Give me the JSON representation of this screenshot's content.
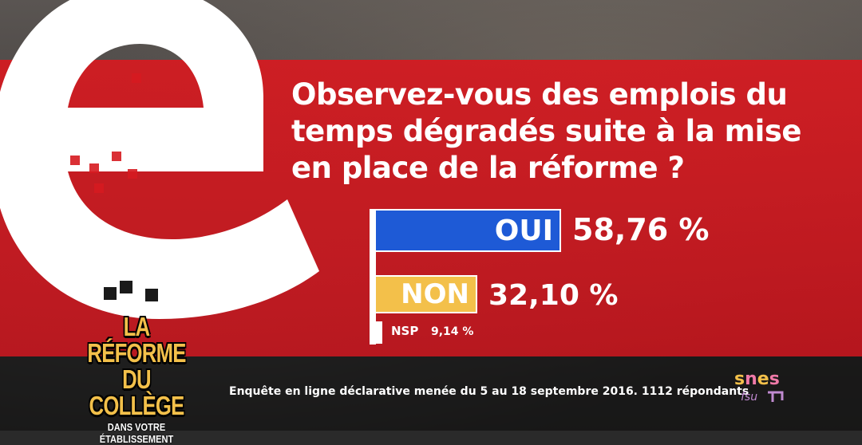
{
  "question": "Observez-vous des emplois du temps dégradés suite à la mise en place de la réforme ?",
  "colors": {
    "red": "#d61a20",
    "oui": "#1e5ad6",
    "non": "#f3c04a",
    "nsp": "#ffffff"
  },
  "chart_data": {
    "type": "bar",
    "orientation": "horizontal",
    "categories": [
      "OUI",
      "NON",
      "NSP"
    ],
    "values": [
      58.76,
      32.1,
      9.14
    ],
    "value_labels": [
      "58,76 %",
      "32,10 %",
      "9,14 %"
    ],
    "title": "Observez-vous des emplois du temps dégradés suite à la mise en place de la réforme ?",
    "unit": "%"
  },
  "campaign": {
    "line1": "LA RÉFORME",
    "line2": "DU COLLÈGE",
    "line3": "DANS VOTRE ÉTABLISSEMENT"
  },
  "footer": "Enquête en ligne déclarative menée du 5 au 18 septembre 2016. 1112 répondants",
  "brand": {
    "name": "snes",
    "sub": "fsu"
  }
}
